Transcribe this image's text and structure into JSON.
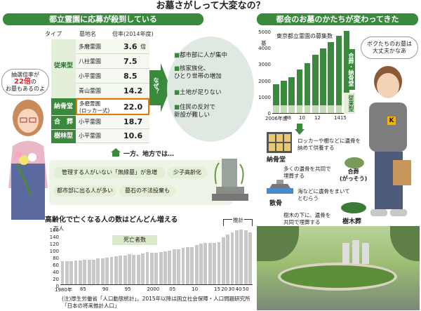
{
  "title": "お墓さがしって大変なの？",
  "left_banner": "都立霊園に応募が殺到している",
  "right_banner": "都会のお墓のかたちが変わってきた",
  "table": {
    "headers": {
      "type": "タイプ",
      "cemetery": "墓地名",
      "rate": "倍率(2014年度)"
    },
    "groups": [
      {
        "type": "従来型",
        "rows": [
          {
            "name": "多磨霊園",
            "rate": "3.6",
            "unit": "倍"
          },
          {
            "name": "八柱霊園",
            "rate": "7.5"
          },
          {
            "name": "小平霊園",
            "rate": "8.5"
          },
          {
            "name": "青山霊園",
            "rate": "14.2"
          }
        ]
      },
      {
        "type": "納骨堂",
        "rows": [
          {
            "name": "多磨霊園\n(ロッカー式)",
            "rate": "22.0"
          }
        ]
      },
      {
        "type": "合　葬",
        "rows": [
          {
            "name": "小平霊園",
            "rate": "18.7"
          }
        ]
      },
      {
        "type": "樹林型",
        "rows": [
          {
            "name": "小平霊園",
            "rate": "10.6"
          }
        ]
      }
    ]
  },
  "why_label": "なぜ？",
  "reasons": [
    "都市部に人が集中",
    "核家族化、\nひとり世帯の増加",
    "土地が足りない",
    "住民の反対で\n新設が難しい"
  ],
  "woman_bubble": {
    "line1": "抽選倍率が",
    "highlight": "22倍",
    "line2": "の",
    "line3": "お墓もあるのよ"
  },
  "man_bubble": "ボクたちのお墓は\n大丈夫かなあ",
  "regional": {
    "heading": "一方、地方では…",
    "tags": [
      "管理する人がいない「無縁墓」が急増",
      "少子高齢化",
      "都市部に出る人が多い",
      "墓石の不法投棄も"
    ]
  },
  "deaths_chart_title": "高齢化で亡くなる人の数はどんどん増える",
  "chart_data": [
    {
      "type": "bar",
      "title": "東京都立霊園の募集数",
      "ylabel": "基",
      "ylim": [
        0,
        5000
      ],
      "y_ticks": [
        "5000",
        "4000",
        "3000",
        "2000",
        "1000",
        "0"
      ],
      "x_ticks": [
        "2006年度",
        "08",
        "10",
        "12",
        "1415"
      ],
      "x": [
        2006,
        2007,
        2008,
        2009,
        2010,
        2011,
        2012,
        2013,
        2014,
        2015
      ],
      "series": [
        {
          "name": "合葬・納骨堂",
          "values": [
            1800,
            2000,
            2200,
            2700,
            3100,
            3600,
            4000,
            4400,
            4800,
            5100
          ]
        },
        {
          "name": "従来型",
          "values": [
            500,
            500,
            500,
            500,
            500,
            500,
            500,
            500,
            500,
            500
          ]
        }
      ]
    },
    {
      "type": "bar",
      "title": "死亡者数",
      "ylabel": "万人",
      "ylim": [
        0,
        170
      ],
      "y_ticks": [
        "160",
        "140",
        "120",
        "100",
        "80",
        "60",
        "40",
        "20",
        "0"
      ],
      "x_ticks": [
        "1980年",
        "85",
        "90",
        "95",
        "2000",
        "05",
        "10",
        "15",
        "20",
        "30",
        "40",
        "50"
      ],
      "estimate_label": "推計",
      "x": [
        1980,
        1981,
        1982,
        1983,
        1984,
        1985,
        1986,
        1987,
        1988,
        1989,
        1990,
        1991,
        1992,
        1993,
        1994,
        1995,
        1996,
        1997,
        1998,
        1999,
        2000,
        2001,
        2002,
        2003,
        2004,
        2005,
        2006,
        2007,
        2008,
        2009,
        2010,
        2011,
        2012,
        2013,
        2014,
        2015,
        2020,
        2025,
        2030,
        2035,
        2040,
        2045,
        2050
      ],
      "values": [
        72,
        72,
        71,
        74,
        74,
        75,
        75,
        75,
        79,
        79,
        82,
        83,
        86,
        88,
        88,
        92,
        90,
        91,
        94,
        98,
        96,
        97,
        98,
        101,
        103,
        108,
        108,
        111,
        114,
        114,
        120,
        125,
        126,
        127,
        127,
        130,
        144,
        152,
        160,
        166,
        168,
        165,
        160
      ]
    }
  ],
  "burial_types": [
    {
      "name": "納骨堂",
      "desc": "ロッカーや棚などに遺骨を\n納めて供養する"
    },
    {
      "name": "合葬\n(がっそう)",
      "desc": "多くの遺骨を共同で\n埋葬する"
    },
    {
      "name": "散骨",
      "desc": "海などに遺骨をまいて\nとむらう"
    },
    {
      "name": "樹木葬",
      "desc": "樹木の下に、遺骨を\n共同で埋葬する"
    }
  ],
  "right_chart_labels": {
    "upper": "合葬・納骨堂",
    "lower": "従来型"
  },
  "man_shirt_letter": "K",
  "source": "(注)厚生労働省「人口動態統計」。2015年以降は国立社会保障・人口問題研究所\n「日本の将来推計人口」",
  "colors": {
    "green": "#3a8a3e",
    "light_green": "#e4efd9",
    "highlight": "#d4292f",
    "bar_light": "#c6dcb6",
    "deaths_bar": "#c8c8c8"
  }
}
